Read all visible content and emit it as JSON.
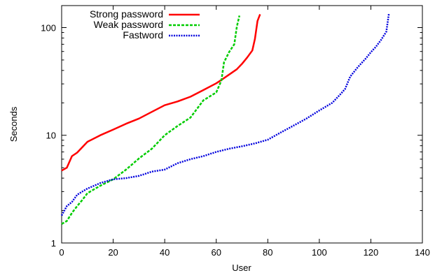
{
  "chart_data": {
    "type": "line",
    "title": "",
    "xlabel": "User",
    "ylabel": "Seconds",
    "xlim": [
      0,
      140
    ],
    "ylim": [
      1,
      160
    ],
    "yscale": "log",
    "grid": false,
    "legend_position": "top-left",
    "xticks": [
      "0",
      "20",
      "40",
      "60",
      "80",
      "100",
      "120",
      "140"
    ],
    "yticks": [
      "1",
      "10",
      "100"
    ],
    "series": [
      {
        "name": "Strong password",
        "color": "#ff0000",
        "style": "solid",
        "x": [
          0,
          2,
          4,
          6,
          10,
          15,
          20,
          25,
          30,
          35,
          40,
          45,
          50,
          55,
          60,
          62,
          65,
          68,
          70,
          72,
          74,
          75,
          76,
          77
        ],
        "y": [
          4.7,
          5.0,
          6.4,
          6.9,
          8.7,
          10.0,
          11.3,
          12.8,
          14.3,
          16.5,
          19.0,
          20.6,
          22.8,
          26.3,
          30.4,
          32.7,
          36.6,
          41.0,
          46.1,
          52.8,
          61.3,
          78.3,
          115,
          133
        ]
      },
      {
        "name": "Weak password",
        "color": "#00cc00",
        "style": "dashed",
        "x": [
          0,
          2,
          4,
          6,
          8,
          10,
          15,
          20,
          25,
          30,
          35,
          40,
          45,
          50,
          55,
          60,
          62,
          63,
          65,
          67,
          68,
          69
        ],
        "y": [
          1.5,
          1.6,
          1.9,
          2.2,
          2.5,
          2.9,
          3.4,
          3.9,
          4.8,
          6.1,
          7.5,
          10.0,
          12.2,
          14.6,
          21.1,
          25.0,
          32.3,
          47.6,
          59.3,
          70.1,
          102,
          129
        ]
      },
      {
        "name": "Fastword",
        "color": "#0000dd",
        "style": "dotted",
        "x": [
          0,
          2,
          4,
          6,
          8,
          10,
          15,
          20,
          25,
          30,
          35,
          40,
          45,
          50,
          55,
          60,
          65,
          70,
          75,
          80,
          85,
          90,
          95,
          100,
          105,
          108,
          110,
          112,
          115,
          118,
          120,
          122,
          124,
          126,
          127
        ],
        "y": [
          1.8,
          2.2,
          2.4,
          2.8,
          3.0,
          3.2,
          3.6,
          3.9,
          4.0,
          4.2,
          4.6,
          4.8,
          5.5,
          6.0,
          6.4,
          7.0,
          7.5,
          7.9,
          8.4,
          9.1,
          10.6,
          12.3,
          14.3,
          17.0,
          20.0,
          23.8,
          26.9,
          35.1,
          43.1,
          51.5,
          59.0,
          66.5,
          77.0,
          91.5,
          135
        ]
      }
    ]
  }
}
